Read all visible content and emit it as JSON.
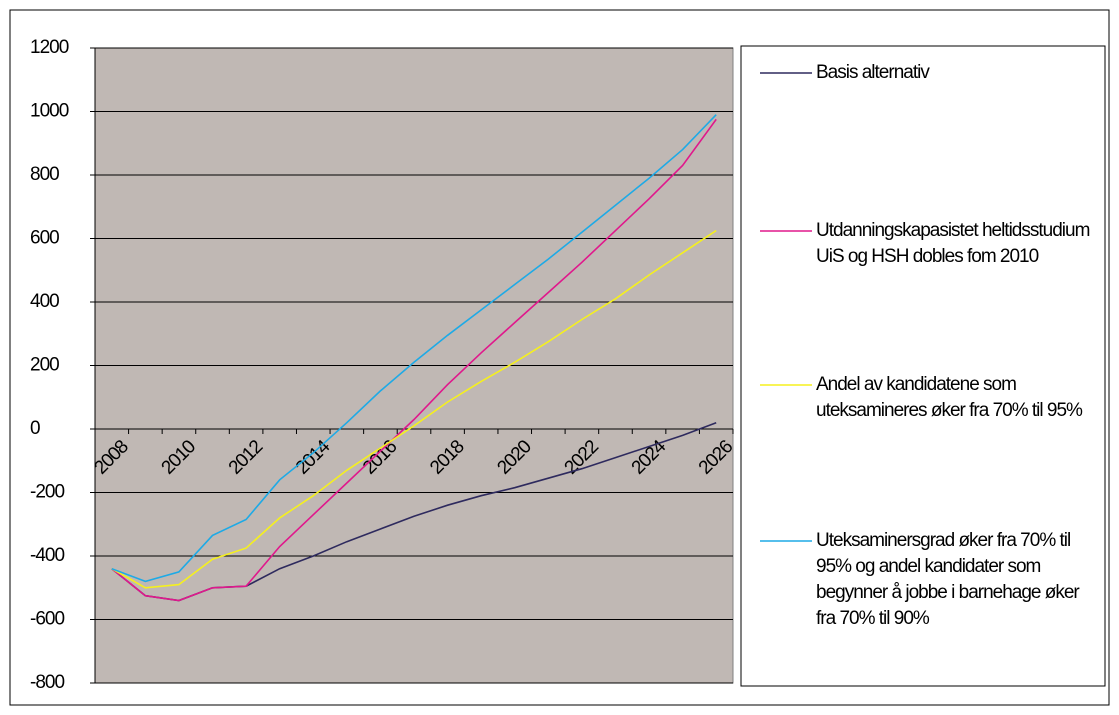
{
  "chart_data": {
    "type": "line",
    "categories": [
      "2008",
      null,
      "2010",
      null,
      "2012",
      null,
      "2014",
      null,
      "2016",
      null,
      "2018",
      null,
      "2020",
      null,
      "2022",
      null,
      "2024",
      null,
      "2026"
    ],
    "series": [
      {
        "name": "Basis alternativ",
        "color": "#2e2a5e",
        "values": [
          -440,
          -525,
          -540,
          -500,
          -495,
          -440,
          -400,
          -355,
          -315,
          -275,
          -240,
          -210,
          -185,
          -155,
          -125,
          -90,
          -55,
          -20,
          20
        ]
      },
      {
        "name": "Utdanningskapasistet heltidsstudium UiS og HSH dobles fom 2010",
        "color": "#e0188c",
        "values": [
          -440,
          -525,
          -540,
          -500,
          -495,
          -370,
          -270,
          -170,
          -70,
          30,
          140,
          240,
          335,
          430,
          525,
          625,
          725,
          830,
          975
        ]
      },
      {
        "name": "Andel av kandidatene som uteksamineres øker fra 70% til 95%",
        "color": "#f5f01e",
        "values": [
          -440,
          -500,
          -490,
          -410,
          -375,
          -280,
          -210,
          -130,
          -60,
          10,
          85,
          150,
          210,
          275,
          345,
          410,
          485,
          555,
          625
        ]
      },
      {
        "name": "Uteksaminersgrad øker fra 70% til 95% og andel kandidater som begynner å jobbe i barnehage øker fra 70% til 90%",
        "color": "#1eaae6",
        "values": [
          -440,
          -480,
          -450,
          -335,
          -285,
          -160,
          -75,
          20,
          120,
          210,
          295,
          375,
          455,
          535,
          620,
          705,
          790,
          880,
          990
        ]
      }
    ],
    "ylim": [
      -800,
      1200
    ],
    "yticks": [
      -800,
      -600,
      -400,
      -200,
      0,
      200,
      400,
      600,
      800,
      1000,
      1200
    ],
    "plot_background": "#c0b8b4",
    "grid": true
  }
}
